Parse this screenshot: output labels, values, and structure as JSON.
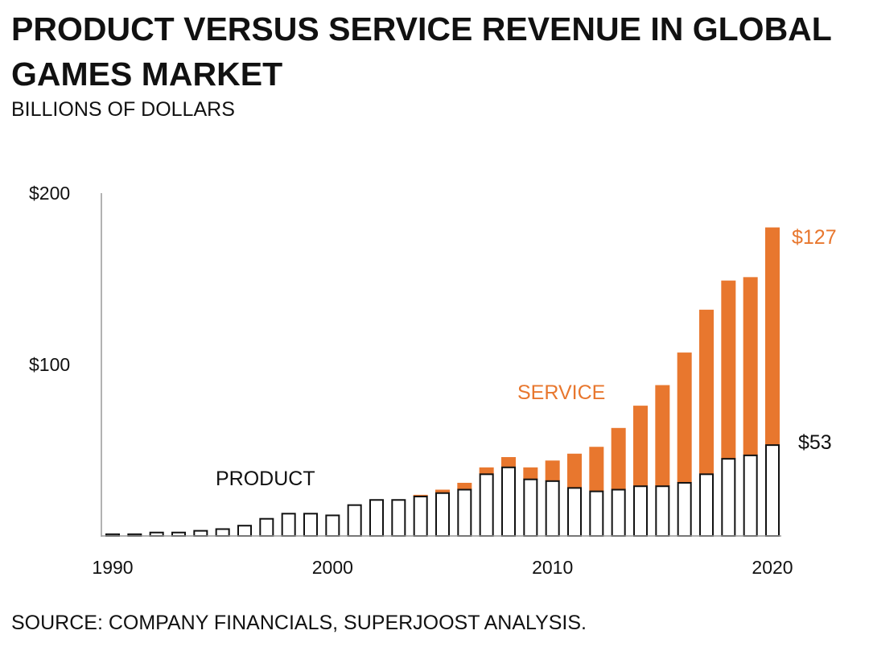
{
  "title": "PRODUCT VERSUS SERVICE REVENUE IN GLOBAL GAMES MARKET",
  "subtitle": "BILLIONS OF DOLLARS",
  "source": "SOURCE: COMPANY FINANCIALS, SUPERJOOST ANALYSIS.",
  "colors": {
    "service": "#e8772e",
    "product_fill": "#ffffff",
    "product_stroke": "#111111",
    "axis": "#999999",
    "text": "#111111"
  },
  "chart_data": {
    "type": "bar",
    "stacked": true,
    "title": "PRODUCT VERSUS SERVICE REVENUE IN GLOBAL GAMES MARKET",
    "ylabel": "BILLIONS OF DOLLARS",
    "xlabel": "",
    "ylim": [
      0,
      200
    ],
    "y_ticks": [
      {
        "value": 100,
        "label": "$100"
      },
      {
        "value": 200,
        "label": "$200"
      }
    ],
    "x_ticks": [
      {
        "value": 1990,
        "label": "1990"
      },
      {
        "value": 2000,
        "label": "2000"
      },
      {
        "value": 2010,
        "label": "2010"
      },
      {
        "value": 2020,
        "label": "2020"
      }
    ],
    "categories": [
      1990,
      1991,
      1992,
      1993,
      1994,
      1995,
      1996,
      1997,
      1998,
      1999,
      2000,
      2001,
      2002,
      2003,
      2004,
      2005,
      2006,
      2007,
      2008,
      2009,
      2010,
      2011,
      2012,
      2013,
      2014,
      2015,
      2016,
      2017,
      2018,
      2019,
      2020
    ],
    "series": [
      {
        "name": "PRODUCT",
        "values": [
          1,
          1,
          2,
          2,
          3,
          4,
          6,
          10,
          13,
          13,
          12,
          18,
          21,
          21,
          23,
          25,
          27,
          36,
          40,
          33,
          32,
          28,
          26,
          27,
          29,
          29,
          31,
          36,
          45,
          47,
          53
        ]
      },
      {
        "name": "SERVICE",
        "values": [
          0,
          0,
          0,
          0,
          0,
          0,
          0,
          0,
          0,
          0,
          0,
          0,
          0,
          0,
          1,
          2,
          4,
          4,
          6,
          7,
          12,
          20,
          26,
          36,
          47,
          59,
          76,
          96,
          104,
          104,
          127
        ]
      }
    ],
    "annotations": [
      {
        "text": "PRODUCT",
        "series": "PRODUCT"
      },
      {
        "text": "SERVICE",
        "series": "SERVICE"
      },
      {
        "text": "$127",
        "series": "SERVICE",
        "year": 2020
      },
      {
        "text": "$53",
        "series": "PRODUCT",
        "year": 2020
      }
    ]
  }
}
